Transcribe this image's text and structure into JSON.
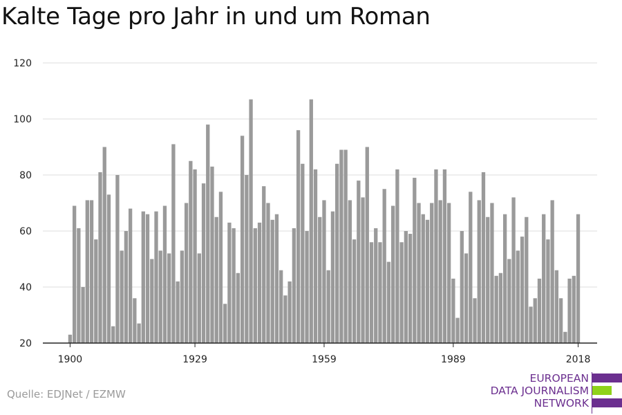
{
  "title": "Kalte Tage pro Jahr in und um Roman",
  "source": "Quelle: EDJNet / EZMW",
  "logo": {
    "lines": [
      "EUROPEAN",
      "DATA JOURNALISM",
      "NETWORK"
    ],
    "colors": {
      "text": "#6b2f8f",
      "bar_top": "#6b2f8f",
      "bar_middle": "#8fd21a",
      "bar_bottom": "#6b2f8f"
    }
  },
  "colors": {
    "bar": "#9a9a9a",
    "grid": "#dddddd",
    "axis": "#222222",
    "tick_text": "#222222"
  },
  "chart_data": {
    "type": "bar",
    "title": "Kalte Tage pro Jahr in und um Roman",
    "xlabel": "",
    "ylabel": "",
    "ylim": [
      20,
      120
    ],
    "yticks": [
      20,
      40,
      60,
      80,
      100,
      120
    ],
    "xticks": [
      1900,
      1929,
      1959,
      1989,
      2018
    ],
    "grid": true,
    "x": [
      1900,
      1901,
      1902,
      1903,
      1904,
      1905,
      1906,
      1907,
      1908,
      1909,
      1910,
      1911,
      1912,
      1913,
      1914,
      1915,
      1916,
      1917,
      1918,
      1919,
      1920,
      1921,
      1922,
      1923,
      1924,
      1925,
      1926,
      1927,
      1928,
      1929,
      1930,
      1931,
      1932,
      1933,
      1934,
      1935,
      1936,
      1937,
      1938,
      1939,
      1940,
      1941,
      1942,
      1943,
      1944,
      1945,
      1946,
      1947,
      1948,
      1949,
      1950,
      1951,
      1952,
      1953,
      1954,
      1955,
      1956,
      1957,
      1958,
      1959,
      1960,
      1961,
      1962,
      1963,
      1964,
      1965,
      1966,
      1967,
      1968,
      1969,
      1970,
      1971,
      1972,
      1973,
      1974,
      1975,
      1976,
      1977,
      1978,
      1979,
      1980,
      1981,
      1982,
      1983,
      1984,
      1985,
      1986,
      1987,
      1988,
      1989,
      1990,
      1991,
      1992,
      1993,
      1994,
      1995,
      1996,
      1997,
      1998,
      1999,
      2000,
      2001,
      2002,
      2003,
      2004,
      2005,
      2006,
      2007,
      2008,
      2009,
      2010,
      2011,
      2012,
      2013,
      2014,
      2015,
      2016,
      2017,
      2018
    ],
    "values": [
      23,
      69,
      61,
      40,
      71,
      71,
      57,
      81,
      90,
      73,
      26,
      80,
      53,
      60,
      68,
      36,
      27,
      67,
      66,
      50,
      67,
      53,
      69,
      52,
      91,
      42,
      53,
      70,
      85,
      82,
      52,
      77,
      98,
      83,
      65,
      74,
      34,
      63,
      61,
      45,
      94,
      80,
      107,
      61,
      63,
      76,
      70,
      64,
      66,
      46,
      37,
      42,
      61,
      96,
      84,
      60,
      107,
      82,
      65,
      71,
      46,
      67,
      84,
      89,
      89,
      71,
      57,
      78,
      72,
      90,
      56,
      61,
      56,
      75,
      49,
      69,
      82,
      56,
      60,
      59,
      79,
      70,
      66,
      64,
      70,
      82,
      71,
      82,
      70,
      43,
      29,
      60,
      52,
      74,
      36,
      71,
      81,
      65,
      70,
      44,
      45,
      66,
      50,
      72,
      53,
      58,
      65,
      33,
      36,
      43,
      66,
      57,
      71,
      46,
      36,
      24,
      43,
      44,
      66
    ]
  }
}
